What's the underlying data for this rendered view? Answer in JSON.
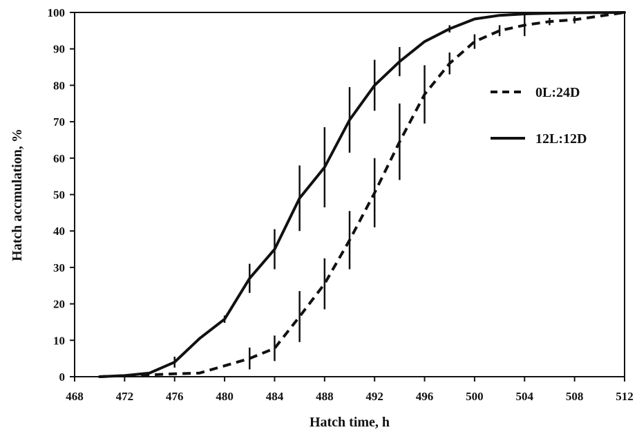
{
  "chart_data": {
    "type": "line",
    "title": "",
    "xlabel": "Hatch time, h",
    "ylabel": "Hatch accmulation, %",
    "xlim": [
      468,
      512
    ],
    "ylim": [
      0,
      100
    ],
    "x_ticks": [
      "468",
      "472",
      "476",
      "480",
      "484",
      "488",
      "492",
      "496",
      "500",
      "504",
      "508",
      "512"
    ],
    "y_ticks": [
      "0",
      "10",
      "20",
      "30",
      "40",
      "50",
      "60",
      "70",
      "80",
      "90",
      "100"
    ],
    "grid": false,
    "legend_position": "right",
    "series": [
      {
        "name": "0L:24D",
        "style": "dashed",
        "color": "#111111",
        "x": [
          470,
          472,
          474,
          476,
          478,
          480,
          482,
          484,
          486,
          488,
          490,
          492,
          494,
          496,
          498,
          500,
          502,
          504,
          506,
          508,
          510,
          512
        ],
        "y": [
          0,
          0.3,
          0.5,
          0.8,
          1,
          3,
          5,
          7.8,
          16.5,
          25.5,
          37.5,
          50.5,
          64.5,
          77.5,
          86,
          92,
          95,
          96.5,
          97.5,
          98,
          99,
          100
        ],
        "error": [
          0,
          0,
          0,
          0,
          0,
          0,
          3,
          3.5,
          7,
          7,
          8,
          9.5,
          10.5,
          8,
          3,
          2,
          1.5,
          3,
          1,
          1,
          0,
          0
        ]
      },
      {
        "name": "12L:12D",
        "style": "solid",
        "color": "#111111",
        "x": [
          470,
          472,
          474,
          476,
          478,
          480,
          482,
          484,
          486,
          488,
          490,
          492,
          494,
          496,
          498,
          500,
          502,
          504,
          506,
          508,
          510,
          512
        ],
        "y": [
          0,
          0.3,
          1,
          4,
          10.5,
          15.8,
          27,
          35,
          49,
          57.5,
          70.5,
          80,
          86.5,
          92,
          95.5,
          98.2,
          99.2,
          99.6,
          99.8,
          99.9,
          99.95,
          100
        ],
        "error": [
          0,
          0,
          0,
          1.5,
          0,
          1,
          4,
          5.5,
          9,
          11,
          9,
          7,
          4,
          0,
          1,
          0,
          0,
          0,
          0,
          0,
          0,
          0
        ]
      }
    ]
  }
}
